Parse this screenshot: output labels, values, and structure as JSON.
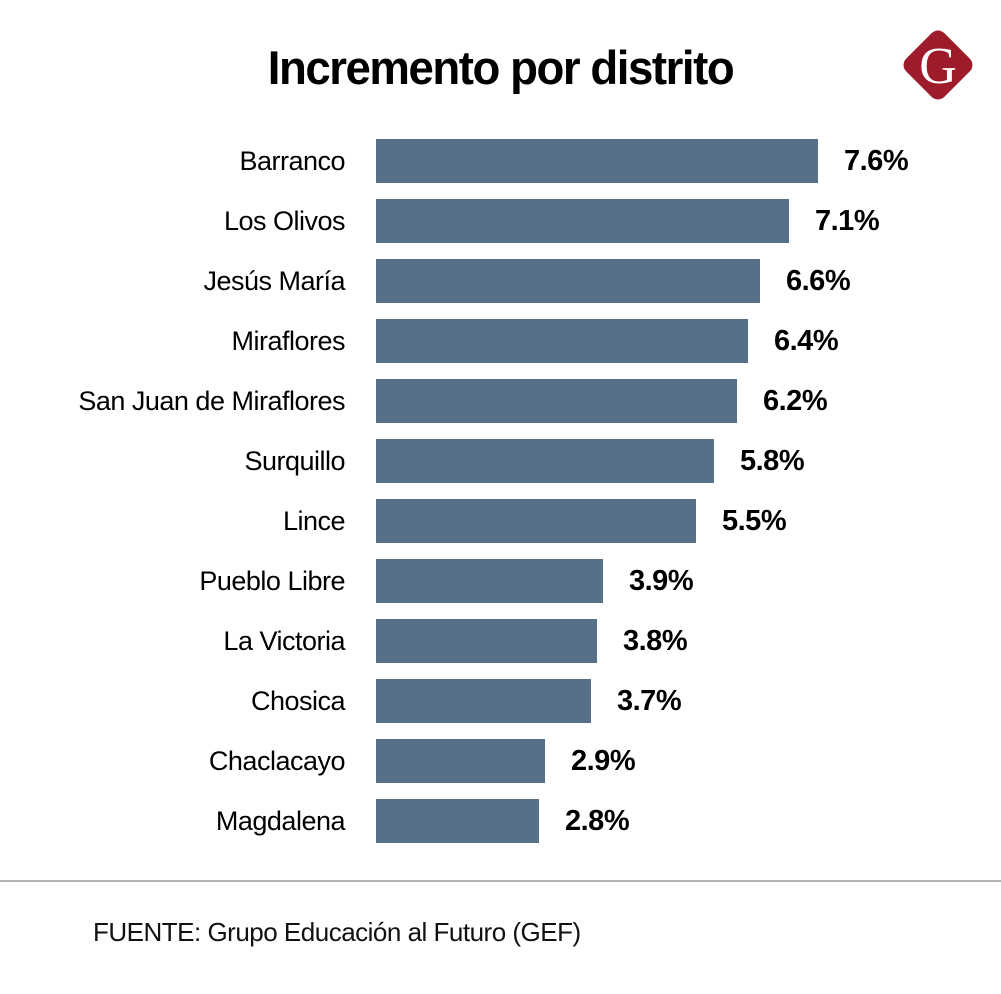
{
  "title": "Incremento por distrito",
  "logo": {
    "letter": "G",
    "color": "#9E1B2B"
  },
  "colors": {
    "bar": "#56708A",
    "divider": "#b3b3b3",
    "text": "#000000"
  },
  "footer": {
    "source": "FUENTE: Grupo Educación al Futuro (GEF)"
  },
  "chart_data": {
    "type": "bar",
    "orientation": "horizontal",
    "title": "Incremento por distrito",
    "categories": [
      "Barranco",
      "Los Olivos",
      "Jesús María",
      "Miraflores",
      "San Juan de Miraflores",
      "Surquillo",
      "Lince",
      "Pueblo Libre",
      "La Victoria",
      "Chosica",
      "Chaclacayo",
      "Magdalena"
    ],
    "values": [
      7.6,
      7.1,
      6.6,
      6.4,
      6.2,
      5.8,
      5.5,
      3.9,
      3.8,
      3.7,
      2.9,
      2.8
    ],
    "value_labels": [
      "7.6%",
      "7.1%",
      "6.6%",
      "6.4%",
      "6.2%",
      "5.8%",
      "5.5%",
      "3.9%",
      "3.8%",
      "3.7%",
      "2.9%",
      "2.8%"
    ],
    "xlabel": "",
    "ylabel": "",
    "xlim": [
      0,
      7.6
    ],
    "grid": false,
    "legend": false,
    "bar_color": "#56708A",
    "source": "FUENTE: Grupo Educación al Futuro (GEF)"
  }
}
